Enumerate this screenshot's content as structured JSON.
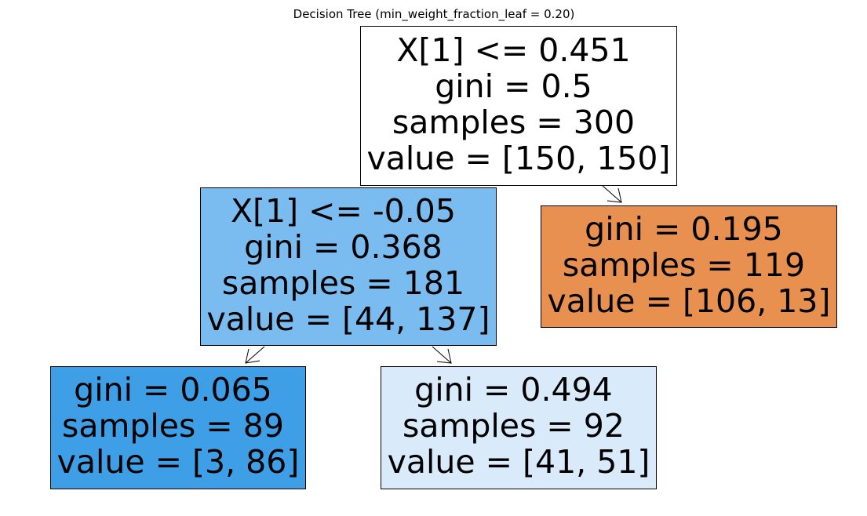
{
  "title": "Decision Tree (min_weight_fraction_leaf = 0.20)",
  "nodes": [
    {
      "id": "root",
      "fill": "#ffffff",
      "lines": [
        "X[1] <= 0.451",
        "gini = 0.5",
        "samples = 300",
        "value = [150, 150]"
      ]
    },
    {
      "id": "left",
      "fill": "#7bbcf0",
      "lines": [
        "X[1] <= -0.05",
        "gini = 0.368",
        "samples = 181",
        "value = [44, 137]"
      ]
    },
    {
      "id": "right",
      "fill": "#e89050",
      "lines": [
        "gini = 0.195",
        "samples = 119",
        "value = [106, 13]"
      ]
    },
    {
      "id": "left-left",
      "fill": "#3e9fe7",
      "lines": [
        "gini = 0.065",
        "samples = 89",
        "value = [3, 86]"
      ]
    },
    {
      "id": "left-right",
      "fill": "#d9ebfa",
      "lines": [
        "gini = 0.494",
        "samples = 92",
        "value = [41, 51]"
      ]
    }
  ]
}
